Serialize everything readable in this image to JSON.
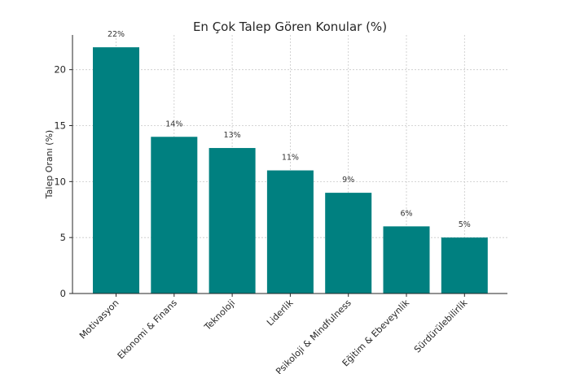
{
  "chart_data": {
    "type": "bar",
    "title": "En Çok Talep Gören Konular (%)",
    "xlabel": "",
    "ylabel": "Talep Oranı (%)",
    "categories": [
      "Motivasyon",
      "Ekonomi & Finans",
      "Teknoloji",
      "Liderlik",
      "Psikoloji & Mindfulness",
      "Eğitim & Ebeveynlik",
      "Sürdürülebilirlik"
    ],
    "values": [
      22,
      14,
      13,
      11,
      9,
      6,
      5
    ],
    "data_labels": [
      "22%",
      "14%",
      "13%",
      "11%",
      "9%",
      "6%",
      "5%"
    ],
    "ylim": [
      0,
      23.1
    ],
    "yticks": [
      0,
      5,
      10,
      15,
      20
    ],
    "grid": true,
    "bar_color": "#008080"
  }
}
